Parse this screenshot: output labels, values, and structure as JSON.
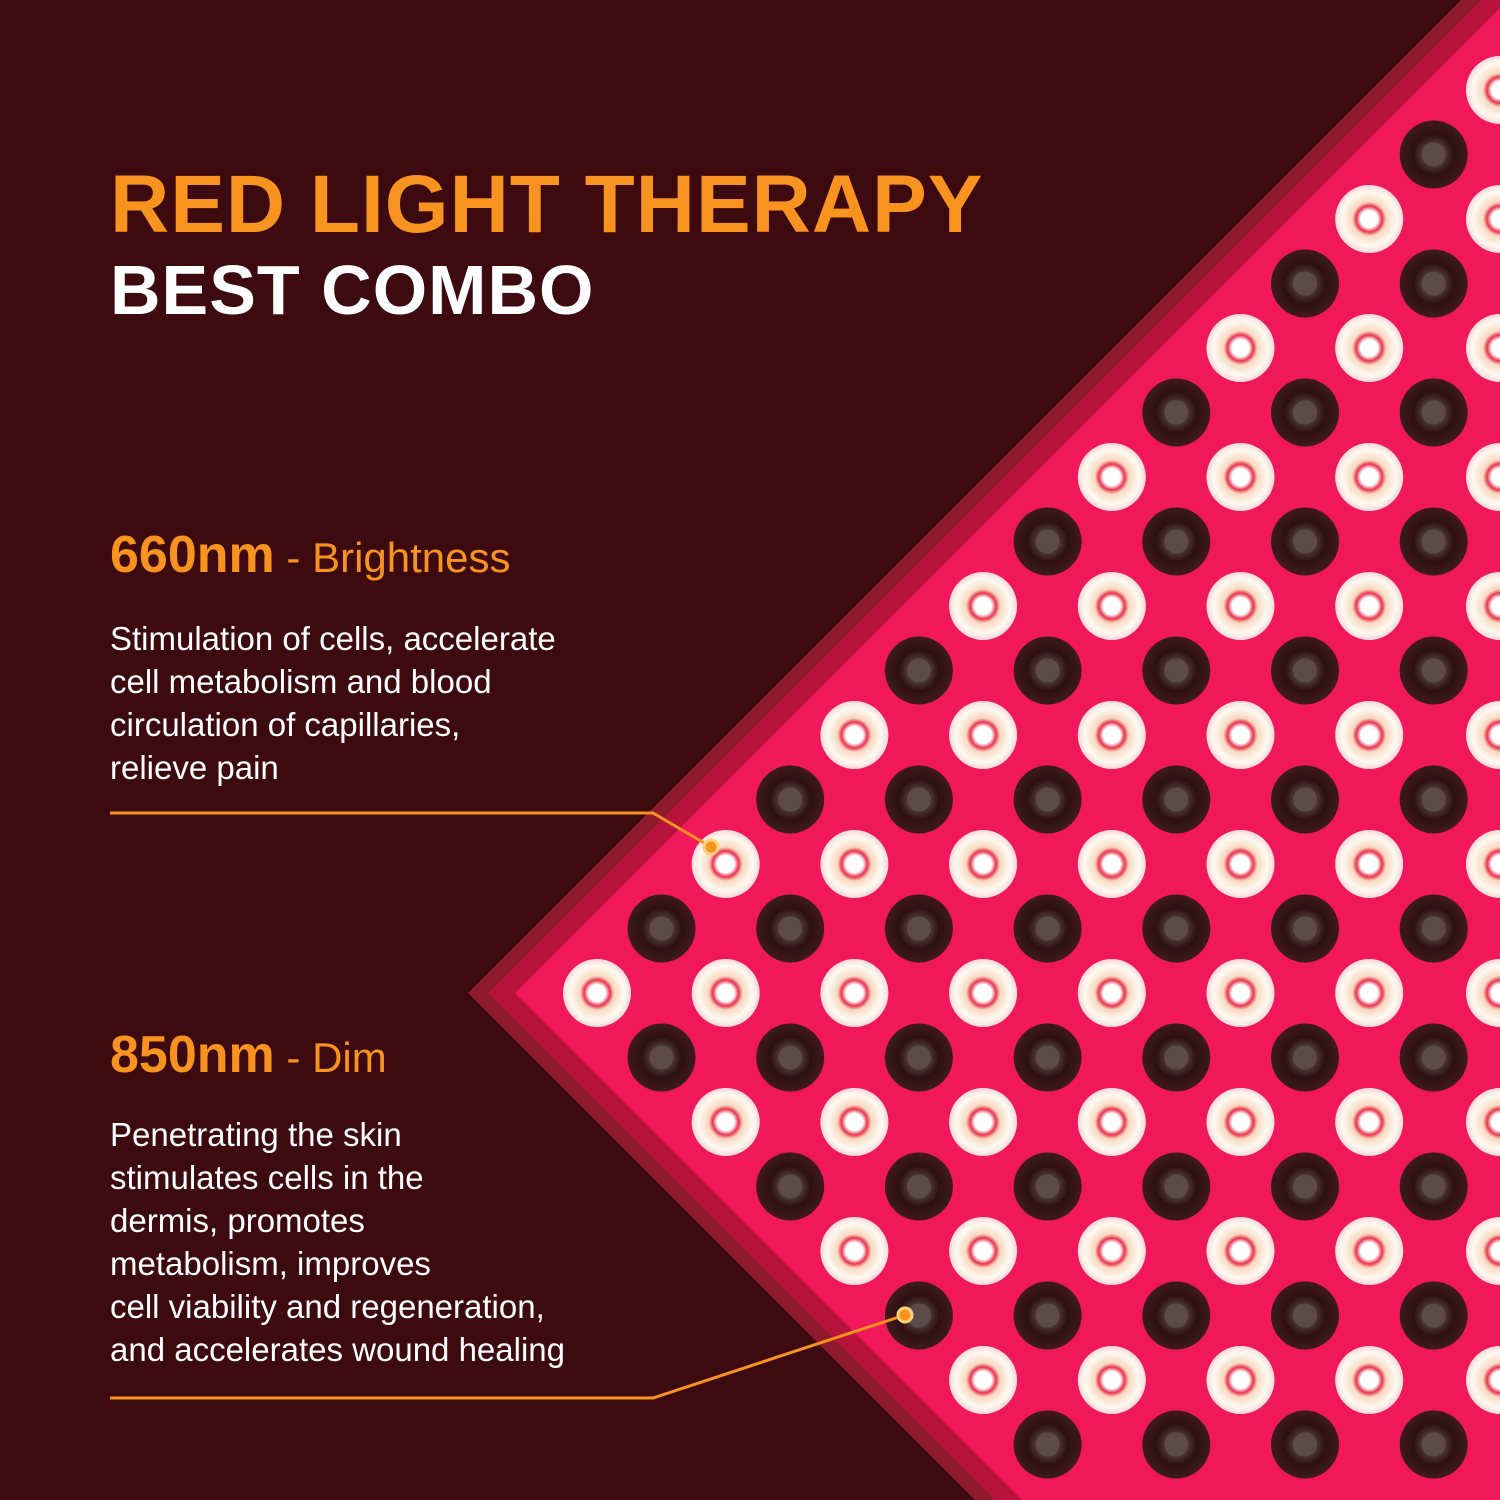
{
  "header": {
    "title": "RED LIGHT THERAPY",
    "subtitle": "BEST COMBO"
  },
  "features": [
    {
      "wavelength": "660nm",
      "label": " - Brightness",
      "lines": [
        "Stimulation of cells, accelerate",
        "cell metabolism and blood",
        "circulation of capillaries,",
        "relieve pain"
      ]
    },
    {
      "wavelength": "850nm",
      "label": " - Dim",
      "lines": [
        "Penetrating the skin",
        "stimulates cells in the",
        "dermis, promotes",
        "metabolism, improves",
        "cell viability and regeneration,",
        "and accelerates wound healing"
      ]
    }
  ],
  "colors": {
    "background": "#3d0a10",
    "accent": "#f7931e",
    "panel": "#f0185a",
    "panel_border": "#a8102f",
    "led_bright": "#fff6ea",
    "led_dark": "#3a1418"
  }
}
